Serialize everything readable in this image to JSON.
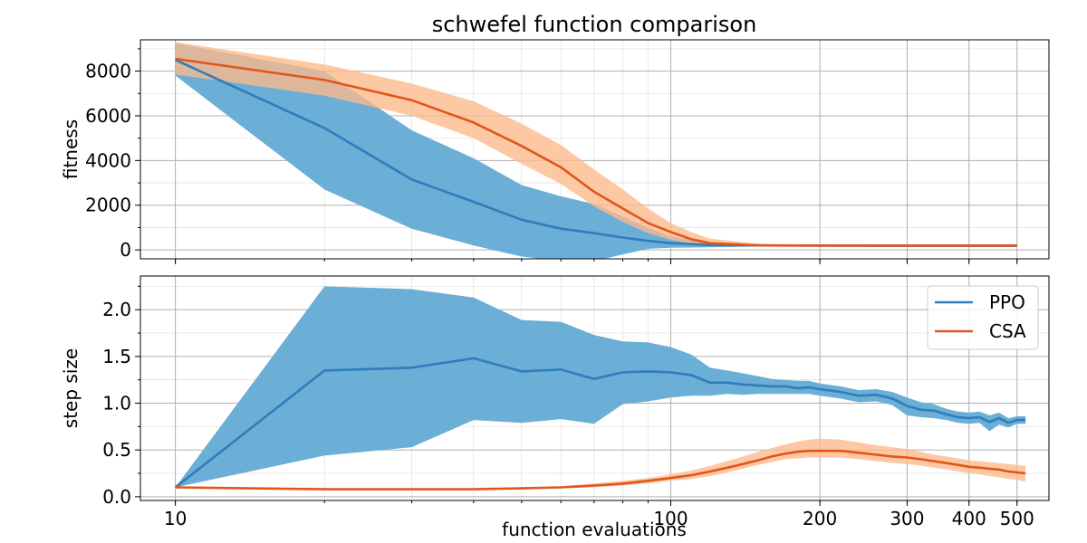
{
  "chart_data": {
    "type": "line",
    "title": "schwefel function comparison",
    "xlabel": "function evaluations",
    "x_scale": "log",
    "xlim": [
      8.5,
      580
    ],
    "x_ticks": [
      10,
      100,
      200,
      300,
      400,
      500
    ],
    "x_tick_labels": [
      "10",
      "100",
      "200",
      "300",
      "400",
      "500"
    ],
    "grid": true,
    "legend": {
      "position": "top-right",
      "panel": "step size"
    },
    "colors": {
      "PPO": "#2f7dbb",
      "PPO_band": "#6baed6",
      "CSA": "#e2561a",
      "CSA_band": "#fdba8c",
      "grid_major": "#b0b0b0",
      "grid_minor": "#e3e3e3"
    },
    "panels": [
      {
        "ylabel": "fitness",
        "ylim": [
          -400,
          9400
        ],
        "y_ticks": [
          0,
          2000,
          4000,
          6000,
          8000
        ],
        "y_tick_labels": [
          "0",
          "2000",
          "4000",
          "6000",
          "8000"
        ],
        "series": [
          {
            "name": "PPO",
            "x": [
              10,
              20,
              30,
              40,
              50,
              60,
              70,
              80,
              90,
              100,
              120,
              150,
              200,
              300,
              400,
              500
            ],
            "y": [
              8500,
              5450,
              3150,
              2150,
              1350,
              950,
              750,
              550,
              400,
              300,
              220,
              200,
              195,
              190,
              190,
              190
            ],
            "lower": [
              7800,
              2700,
              950,
              200,
              -300,
              -500,
              -500,
              -200,
              50,
              100,
              120,
              150,
              170,
              175,
              180,
              180
            ],
            "upper": [
              9250,
              8000,
              5350,
              4100,
              2900,
              2400,
              2050,
              1500,
              1000,
              600,
              350,
              260,
              220,
              205,
              200,
              200
            ]
          },
          {
            "name": "CSA",
            "x": [
              10,
              20,
              30,
              40,
              50,
              60,
              70,
              80,
              90,
              100,
              110,
              120,
              150,
              200,
              300,
              400,
              500
            ],
            "y": [
              8550,
              7600,
              6700,
              5700,
              4650,
              3700,
              2600,
              1850,
              1200,
              800,
              480,
              300,
              200,
              190,
              185,
              185,
              185
            ],
            "lower": [
              7850,
              6900,
              6000,
              5000,
              3850,
              2950,
              1950,
              1250,
              750,
              450,
              280,
              190,
              150,
              170,
              175,
              178,
              178
            ],
            "upper": [
              9300,
              8300,
              7450,
              6650,
              5650,
              4700,
              3600,
              2700,
              1850,
              1200,
              800,
              500,
              280,
              220,
              200,
              195,
              195
            ]
          }
        ]
      },
      {
        "ylabel": "step size",
        "ylim": [
          -0.04,
          2.36
        ],
        "y_ticks": [
          0.0,
          0.5,
          1.0,
          1.5,
          2.0
        ],
        "y_tick_labels": [
          "0.0",
          "0.5",
          "1.0",
          "1.5",
          "2.0"
        ],
        "series": [
          {
            "name": "PPO",
            "x": [
              10,
              20,
              30,
              40,
              50,
              60,
              70,
              80,
              90,
              100,
              110,
              120,
              130,
              140,
              150,
              160,
              170,
              180,
              190,
              200,
              220,
              240,
              260,
              280,
              300,
              320,
              340,
              360,
              380,
              400,
              420,
              440,
              460,
              480,
              500,
              520
            ],
            "y": [
              0.1,
              1.35,
              1.38,
              1.48,
              1.34,
              1.36,
              1.26,
              1.33,
              1.34,
              1.33,
              1.3,
              1.22,
              1.22,
              1.2,
              1.19,
              1.18,
              1.18,
              1.16,
              1.17,
              1.15,
              1.12,
              1.08,
              1.09,
              1.05,
              0.97,
              0.93,
              0.92,
              0.88,
              0.85,
              0.84,
              0.85,
              0.8,
              0.84,
              0.79,
              0.82,
              0.82
            ],
            "lower": [
              0.1,
              0.44,
              0.53,
              0.82,
              0.79,
              0.83,
              0.78,
              0.99,
              1.02,
              1.06,
              1.08,
              1.08,
              1.1,
              1.09,
              1.1,
              1.1,
              1.1,
              1.1,
              1.1,
              1.08,
              1.05,
              1.01,
              1.02,
              0.98,
              0.87,
              0.85,
              0.84,
              0.82,
              0.79,
              0.78,
              0.79,
              0.7,
              0.77,
              0.74,
              0.78,
              0.78
            ],
            "upper": [
              0.1,
              2.25,
              2.22,
              2.13,
              1.89,
              1.87,
              1.73,
              1.66,
              1.65,
              1.6,
              1.52,
              1.38,
              1.35,
              1.32,
              1.29,
              1.26,
              1.25,
              1.24,
              1.24,
              1.21,
              1.18,
              1.14,
              1.15,
              1.12,
              1.06,
              1.01,
              0.99,
              0.94,
              0.91,
              0.9,
              0.91,
              0.87,
              0.9,
              0.84,
              0.86,
              0.86
            ]
          },
          {
            "name": "CSA",
            "x": [
              10,
              20,
              30,
              40,
              50,
              60,
              70,
              80,
              90,
              100,
              110,
              120,
              130,
              140,
              150,
              160,
              170,
              180,
              190,
              200,
              220,
              240,
              260,
              280,
              300,
              320,
              340,
              360,
              380,
              400,
              420,
              440,
              460,
              480,
              500,
              520
            ],
            "y": [
              0.1,
              0.08,
              0.08,
              0.08,
              0.09,
              0.1,
              0.12,
              0.14,
              0.17,
              0.2,
              0.23,
              0.27,
              0.31,
              0.35,
              0.39,
              0.43,
              0.46,
              0.48,
              0.49,
              0.49,
              0.49,
              0.47,
              0.45,
              0.43,
              0.42,
              0.4,
              0.38,
              0.36,
              0.34,
              0.32,
              0.31,
              0.3,
              0.29,
              0.27,
              0.26,
              0.25
            ],
            "lower": [
              0.09,
              0.07,
              0.07,
              0.07,
              0.08,
              0.09,
              0.1,
              0.12,
              0.14,
              0.17,
              0.19,
              0.22,
              0.26,
              0.3,
              0.34,
              0.37,
              0.4,
              0.41,
              0.42,
              0.42,
              0.42,
              0.4,
              0.38,
              0.36,
              0.35,
              0.33,
              0.31,
              0.29,
              0.27,
              0.25,
              0.24,
              0.22,
              0.21,
              0.19,
              0.18,
              0.16
            ],
            "upper": [
              0.11,
              0.09,
              0.09,
              0.09,
              0.1,
              0.11,
              0.14,
              0.17,
              0.2,
              0.24,
              0.28,
              0.33,
              0.38,
              0.43,
              0.48,
              0.52,
              0.56,
              0.59,
              0.61,
              0.62,
              0.61,
              0.58,
              0.55,
              0.53,
              0.51,
              0.48,
              0.45,
              0.43,
              0.41,
              0.39,
              0.38,
              0.37,
              0.36,
              0.35,
              0.34,
              0.33
            ]
          }
        ]
      }
    ]
  }
}
